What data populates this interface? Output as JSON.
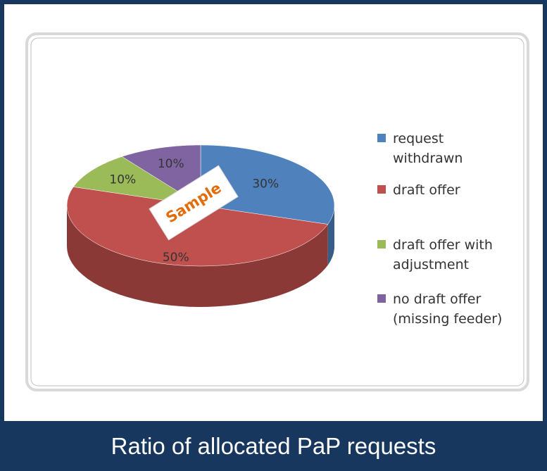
{
  "chart_data": {
    "type": "pie",
    "style": "3d",
    "categories": [
      "request withdrawn",
      "draft offer",
      "draft offer with adjustment",
      "no draft offer (missing feeder)"
    ],
    "values": [
      30,
      50,
      10,
      10
    ],
    "value_labels": [
      "30%",
      "50%",
      "10%",
      "10%"
    ],
    "colors": [
      "#4f81bd",
      "#c0504d",
      "#9bbb59",
      "#8064a2"
    ],
    "legend": "right",
    "watermark": "Sample",
    "caption": "Ratio of allocated PaP requests"
  }
}
